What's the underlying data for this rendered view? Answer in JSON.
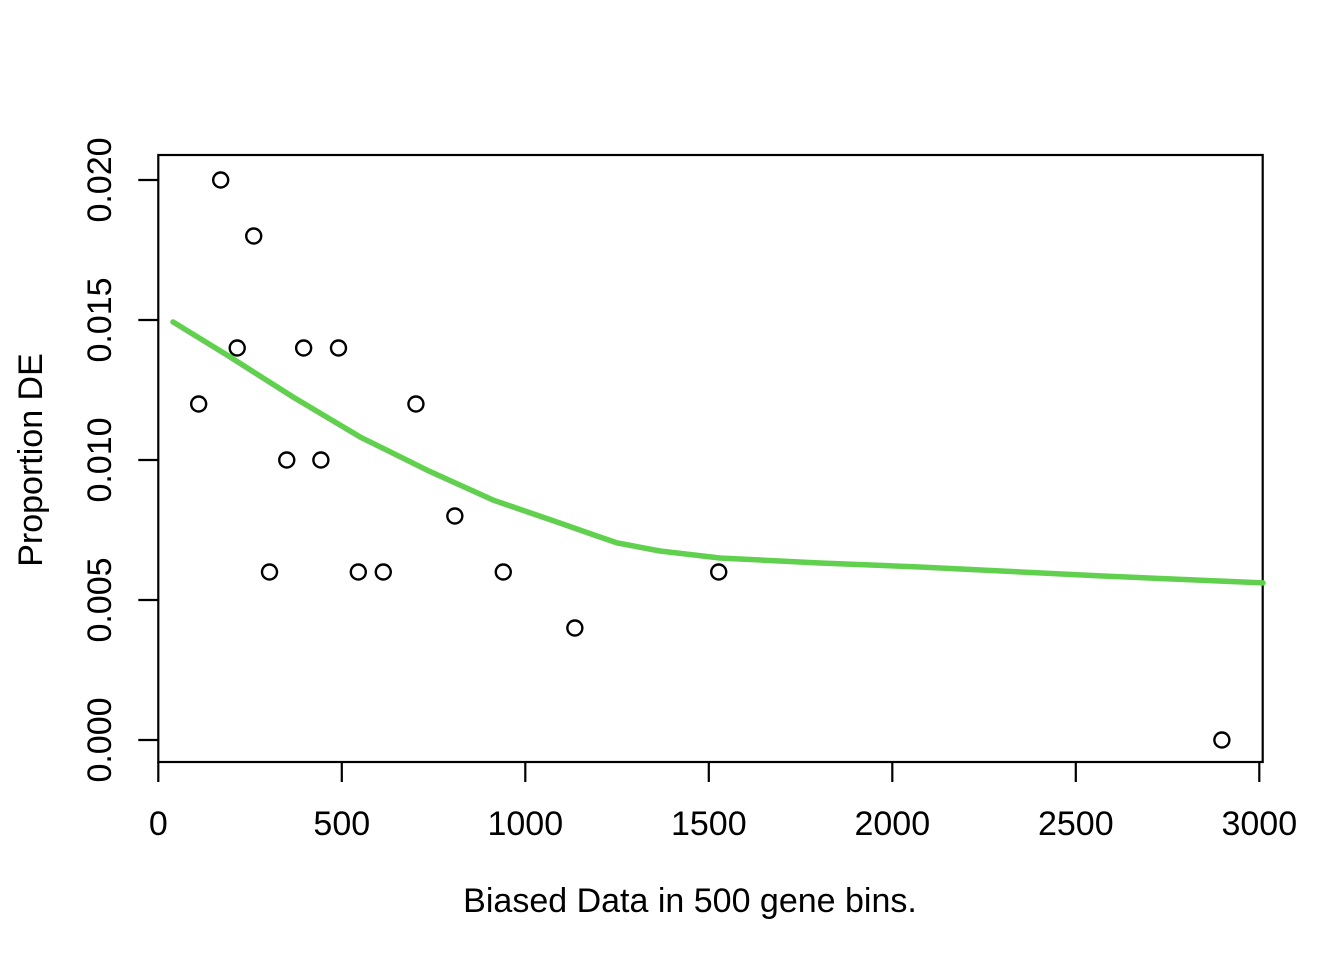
{
  "chart_data": {
    "type": "scatter",
    "title": "",
    "xlabel": "Biased Data in 500 gene bins.",
    "ylabel": "Proportion DE",
    "xlim": [
      0,
      3000
    ],
    "ylim": [
      0.0,
      0.02
    ],
    "x_ticks": [
      0,
      500,
      1000,
      1500,
      2000,
      2500,
      3000
    ],
    "y_ticks": [
      0.0,
      0.005,
      0.01,
      0.015,
      0.02
    ],
    "y_tick_labels": [
      "0.000",
      "0.005",
      "0.010",
      "0.015",
      "0.020"
    ],
    "grid": false,
    "legend": null,
    "frame_box": true,
    "points": {
      "name": "binned proportion DE",
      "marker": "open-circle",
      "color": "#000000",
      "x": [
        110,
        170,
        215,
        260,
        303,
        350,
        396,
        443,
        491,
        545,
        613,
        702,
        808,
        940,
        1135,
        1527,
        2898
      ],
      "y": [
        0.012,
        0.02,
        0.014,
        0.018,
        0.006,
        0.01,
        0.014,
        0.01,
        0.014,
        0.006,
        0.006,
        0.012,
        0.008,
        0.006,
        0.004,
        0.006,
        0.0
      ]
    },
    "trend_line": {
      "name": "smoothed fit",
      "color": "#61D04F",
      "x": [
        40,
        187,
        367,
        550,
        732,
        912,
        1094,
        1203,
        1250,
        1367,
        1530,
        1803,
        2075,
        2566,
        3010
      ],
      "y": [
        0.01493,
        0.01375,
        0.01225,
        0.01082,
        0.00964,
        0.00857,
        0.00775,
        0.00725,
        0.00704,
        0.00675,
        0.0065,
        0.00632,
        0.00618,
        0.00586,
        0.00561
      ]
    }
  }
}
